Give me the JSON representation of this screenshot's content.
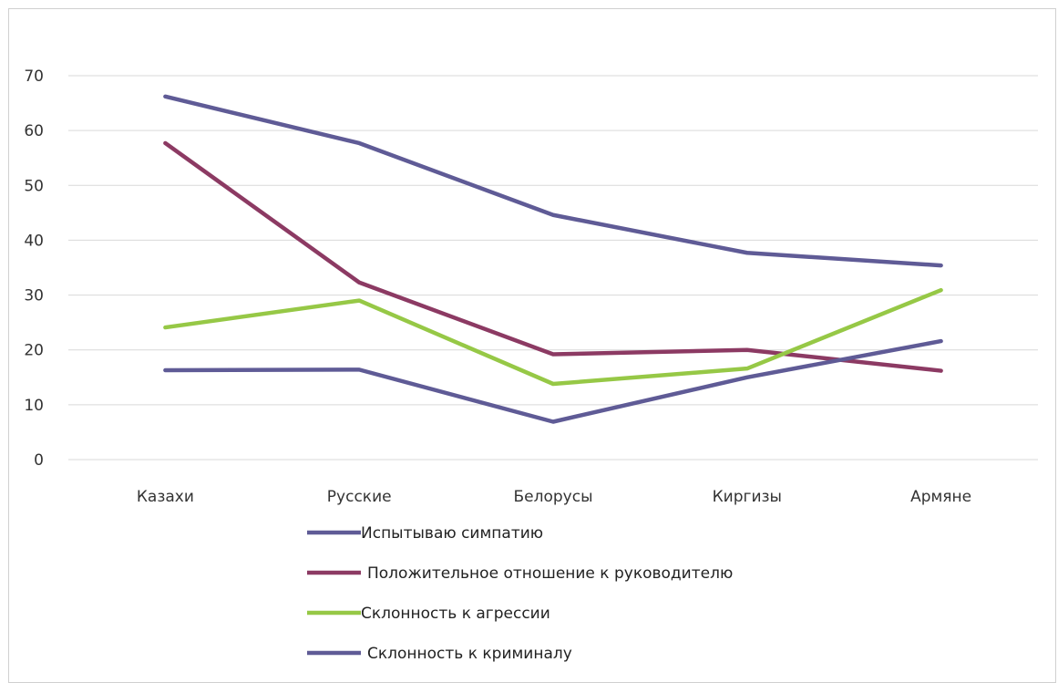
{
  "chart_data": {
    "type": "line",
    "categories": [
      "Казахи",
      "Русские",
      "Белорусы",
      "Киргизы",
      "Армяне"
    ],
    "ylim": [
      0,
      70
    ],
    "yticks": [
      "0",
      "10",
      "20",
      "30",
      "40",
      "50",
      "60",
      "70"
    ],
    "grid": true,
    "legend_position": "bottom",
    "series": [
      {
        "name": "Испытываю симпатию",
        "color": "#5F5B96",
        "values": [
          66.2,
          57.7,
          44.6,
          37.7,
          35.4
        ]
      },
      {
        "name": "Положительное отношение к руководителю",
        "color": "#8C3A63",
        "values": [
          57.7,
          32.3,
          19.2,
          20.0,
          16.2
        ]
      },
      {
        "name": "Склонность к агрессии",
        "color": "#96C846",
        "values": [
          24.1,
          29.0,
          13.8,
          16.6,
          30.9
        ]
      },
      {
        "name": "Склонность к криминалу",
        "color": "#5F5B96",
        "values": [
          16.3,
          16.4,
          6.9,
          15.0,
          21.6
        ]
      }
    ]
  }
}
